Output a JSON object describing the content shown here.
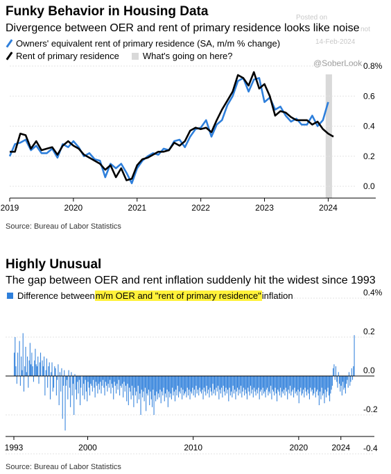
{
  "watermark": {
    "posted_on": "Posted on",
    "date": "14-Feb-2024",
    "handle": "@SoberLook",
    "faint": "not"
  },
  "colors": {
    "blue": "#2e7fdb",
    "black": "#000000",
    "highlight_bar": "#d9d9d9",
    "yellow": "#fff23a"
  },
  "chart_data": [
    {
      "type": "line",
      "title": "Funky Behavior in Housing Data",
      "subtitle": "Divergence between OER and rent of primary residence looks like noise",
      "legend": [
        "Owners' equivalent rent of primary residence (SA, m/m % change)",
        "Rent of primary residence",
        "What's going on here?"
      ],
      "source": "Source: Bureau of Labor Statistics",
      "x_ticks": [
        "2019",
        "2020",
        "2021",
        "2022",
        "2023",
        "2024"
      ],
      "y_ticks": [
        "0.0",
        "0.2",
        "0.4",
        "0.6",
        "0.8%"
      ],
      "ylim": [
        -0.05,
        0.8
      ],
      "xlim": [
        2019.0,
        2024.42
      ],
      "highlight_range": [
        2023.96,
        2024.06
      ],
      "series": [
        {
          "name": "Owners' equivalent rent of primary residence (SA, m/m % change)",
          "color": "#2e7fdb",
          "x": [
            2019.0,
            2019.083,
            2019.167,
            2019.25,
            2019.333,
            2019.417,
            2019.5,
            2019.583,
            2019.667,
            2019.75,
            2019.833,
            2019.917,
            2020.0,
            2020.083,
            2020.167,
            2020.25,
            2020.333,
            2020.417,
            2020.5,
            2020.583,
            2020.667,
            2020.75,
            2020.833,
            2020.917,
            2021.0,
            2021.083,
            2021.167,
            2021.25,
            2021.333,
            2021.417,
            2021.5,
            2021.583,
            2021.667,
            2021.75,
            2021.833,
            2021.917,
            2022.0,
            2022.083,
            2022.167,
            2022.25,
            2022.333,
            2022.417,
            2022.5,
            2022.583,
            2022.667,
            2022.75,
            2022.833,
            2022.917,
            2023.0,
            2023.083,
            2023.167,
            2023.25,
            2023.333,
            2023.417,
            2023.5,
            2023.583,
            2023.667,
            2023.75,
            2023.833,
            2023.917,
            2024.0
          ],
          "values": [
            0.2,
            0.28,
            0.29,
            0.31,
            0.24,
            0.27,
            0.22,
            0.22,
            0.25,
            0.19,
            0.28,
            0.26,
            0.3,
            0.26,
            0.2,
            0.22,
            0.18,
            0.17,
            0.06,
            0.15,
            0.12,
            0.15,
            0.09,
            0.02,
            0.12,
            0.17,
            0.2,
            0.22,
            0.21,
            0.25,
            0.24,
            0.3,
            0.31,
            0.26,
            0.33,
            0.38,
            0.39,
            0.44,
            0.33,
            0.41,
            0.44,
            0.54,
            0.6,
            0.7,
            0.72,
            0.63,
            0.71,
            0.72,
            0.56,
            0.59,
            0.51,
            0.53,
            0.47,
            0.43,
            0.45,
            0.41,
            0.41,
            0.47,
            0.4,
            0.44,
            0.56
          ]
        },
        {
          "name": "Rent of primary residence",
          "color": "#000000",
          "x": [
            2019.0,
            2019.083,
            2019.167,
            2019.25,
            2019.333,
            2019.417,
            2019.5,
            2019.583,
            2019.667,
            2019.75,
            2019.833,
            2019.917,
            2020.0,
            2020.083,
            2020.167,
            2020.25,
            2020.333,
            2020.417,
            2020.5,
            2020.583,
            2020.667,
            2020.75,
            2020.833,
            2020.917,
            2021.0,
            2021.083,
            2021.167,
            2021.25,
            2021.333,
            2021.417,
            2021.5,
            2021.583,
            2021.667,
            2021.75,
            2021.833,
            2021.917,
            2022.0,
            2022.083,
            2022.167,
            2022.25,
            2022.333,
            2022.417,
            2022.5,
            2022.583,
            2022.667,
            2022.75,
            2022.833,
            2022.917,
            2023.0,
            2023.083,
            2023.167,
            2023.25,
            2023.333,
            2023.417,
            2023.5,
            2023.583,
            2023.667,
            2023.75,
            2023.833,
            2023.917,
            2024.0,
            2024.083
          ],
          "values": [
            0.23,
            0.23,
            0.35,
            0.34,
            0.25,
            0.3,
            0.24,
            0.25,
            0.26,
            0.21,
            0.27,
            0.3,
            0.27,
            0.25,
            0.21,
            0.19,
            0.17,
            0.15,
            0.11,
            0.14,
            0.06,
            0.12,
            0.04,
            0.05,
            0.14,
            0.18,
            0.19,
            0.21,
            0.23,
            0.23,
            0.24,
            0.29,
            0.27,
            0.3,
            0.37,
            0.39,
            0.38,
            0.39,
            0.36,
            0.44,
            0.51,
            0.57,
            0.63,
            0.74,
            0.72,
            0.67,
            0.76,
            0.65,
            0.68,
            0.6,
            0.47,
            0.5,
            0.49,
            0.46,
            0.44,
            0.44,
            0.44,
            0.41,
            0.43,
            0.38,
            0.35,
            0.33
          ]
        }
      ]
    },
    {
      "type": "bar",
      "title": "Highly Unusual",
      "subtitle": "The gap between OER and rent inflation suddenly hit the widest since 1993",
      "legend": {
        "prefix": "Difference between ",
        "highlighted": "m/m OER and \"rent of primary residence\"",
        "suffix": " inflation"
      },
      "source": "Source: Bureau of Labor Statistics",
      "x_ticks": [
        "1993",
        "2000",
        "2010",
        "2020",
        "2024"
      ],
      "y_ticks": [
        "0.4%",
        "0.2",
        "0.0",
        "-0.2",
        "-0.4"
      ],
      "ylim": [
        -0.45,
        0.45
      ],
      "xlim": [
        1993.0,
        2024.15
      ],
      "color": "#2e7fdb",
      "x_start": 1993.0,
      "step": 0.0833,
      "values": [
        0.12,
        0.2,
        0.05,
        -0.04,
        0.12,
        0.0,
        0.18,
        -0.05,
        0.1,
        0.03,
        0.22,
        -0.08,
        0.05,
        0.15,
        0.02,
        0.1,
        -0.06,
        0.08,
        0.17,
        0.06,
        0.12,
        0.05,
        -0.03,
        0.08,
        0.14,
        0.06,
        0.05,
        0.1,
        -0.04,
        0.07,
        0.12,
        0.0,
        0.08,
        0.05,
        0.1,
        -0.1,
        0.03,
        0.09,
        -0.06,
        0.05,
        0.07,
        -0.12,
        0.02,
        0.07,
        -0.08,
        -0.06,
        0.05,
        0.04,
        -0.1,
        -0.02,
        0.06,
        -0.15,
        0.02,
        -0.08,
        0.04,
        -0.22,
        -0.05,
        0.03,
        -0.28,
        -0.05,
        -0.02,
        -0.12,
        0.03,
        -0.06,
        -0.16,
        0.02,
        -0.1,
        -0.04,
        -0.2,
        0.01,
        -0.07,
        -0.12,
        -0.03,
        -0.09,
        -0.02,
        -0.15,
        -0.06,
        0.0,
        -0.1,
        -0.04,
        -0.12,
        -0.02,
        -0.08,
        -0.13,
        -0.03,
        -0.06,
        -0.1,
        -0.04,
        -0.05,
        -0.08,
        -0.02,
        -0.06,
        -0.11,
        -0.03,
        -0.05,
        -0.09,
        -0.04,
        -0.07,
        -0.03,
        -0.09,
        -0.05,
        -0.02,
        -0.06,
        -0.1,
        -0.03,
        -0.05,
        -0.08,
        -0.04,
        -0.06,
        -0.02,
        -0.09,
        -0.04,
        -0.06,
        -0.12,
        -0.03,
        -0.05,
        -0.09,
        -0.04,
        -0.07,
        -0.02,
        -0.1,
        -0.05,
        -0.06,
        -0.04,
        -0.11,
        -0.03,
        -0.08,
        -0.05,
        -0.13,
        -0.04,
        -0.15,
        -0.06,
        -0.08,
        -0.12,
        -0.05,
        -0.1,
        -0.16,
        -0.06,
        -0.1,
        -0.08,
        -0.14,
        -0.05,
        -0.12,
        -0.09,
        -0.2,
        -0.07,
        -0.11,
        -0.08,
        -0.13,
        -0.06,
        -0.18,
        -0.09,
        -0.1,
        -0.07,
        -0.15,
        -0.08,
        -0.12,
        -0.16,
        -0.07,
        -0.2,
        -0.1,
        -0.13,
        -0.08,
        -0.12,
        -0.09,
        -0.11,
        -0.07,
        -0.14,
        -0.08,
        -0.1,
        -0.06,
        -0.13,
        -0.09,
        -0.11,
        -0.07,
        -0.16,
        -0.08,
        -0.11,
        -0.09,
        -0.12,
        -0.06,
        -0.1,
        -0.08,
        -0.13,
        -0.07,
        -0.1,
        -0.05,
        -0.11,
        -0.08,
        -0.09,
        -0.06,
        -0.12,
        -0.07,
        -0.1,
        -0.09,
        -0.08,
        -0.11,
        -0.06,
        -0.1,
        -0.07,
        -0.12,
        -0.08,
        -0.09,
        -0.06,
        -0.1,
        -0.07,
        -0.11,
        -0.05,
        -0.09,
        -0.07,
        -0.1,
        -0.06,
        -0.08,
        -0.09,
        -0.07,
        -0.12,
        -0.06,
        -0.08,
        -0.1,
        -0.05,
        -0.09,
        -0.07,
        -0.11,
        -0.06,
        -0.08,
        -0.1,
        -0.04,
        -0.09,
        -0.07,
        -0.1,
        -0.06,
        -0.08,
        -0.05,
        -0.12,
        -0.07,
        -0.09,
        -0.06,
        -0.11,
        -0.05,
        -0.08,
        -0.1,
        -0.06,
        -0.09,
        -0.07,
        -0.13,
        -0.06,
        -0.1,
        -0.08,
        -0.11,
        -0.05,
        -0.09,
        -0.07,
        -0.12,
        -0.08,
        -0.06,
        -0.1,
        -0.07,
        -0.09,
        -0.05,
        -0.11,
        -0.08,
        -0.06,
        -0.1,
        -0.07,
        -0.09,
        -0.12,
        -0.06,
        -0.08,
        -0.1,
        -0.05,
        -0.09,
        -0.07,
        -0.11,
        -0.06,
        -0.08,
        -0.1,
        -0.07,
        -0.09,
        -0.06,
        -0.12,
        -0.08,
        -0.07,
        -0.1,
        -0.06,
        -0.09,
        -0.08,
        -0.11,
        -0.07,
        -0.06,
        -0.1,
        -0.08,
        -0.09,
        -0.05,
        -0.12,
        -0.07,
        -0.08,
        -0.1,
        -0.06,
        -0.09,
        -0.13,
        -0.07,
        -0.08,
        -0.1,
        -0.06,
        -0.11,
        -0.08,
        -0.09,
        -0.07,
        -0.1,
        -0.06,
        -0.08,
        -0.12,
        -0.07,
        -0.09,
        -0.05,
        -0.1,
        -0.08,
        -0.07,
        -0.11,
        -0.06,
        -0.09,
        -0.08,
        -0.1,
        -0.07,
        -0.14,
        -0.08,
        -0.06,
        -0.1,
        -0.09,
        -0.07,
        -0.11,
        -0.06,
        -0.08,
        -0.1,
        -0.07,
        -0.09,
        -0.12,
        -0.06,
        -0.08,
        -0.07,
        -0.1,
        -0.09,
        -0.06,
        -0.11,
        -0.08,
        -0.07,
        -0.1,
        -0.15,
        -0.08,
        -0.12,
        -0.06,
        -0.1,
        -0.09,
        -0.14,
        -0.07,
        -0.11,
        -0.08,
        -0.06,
        -0.1,
        -0.13,
        -0.09,
        -0.07,
        -0.05,
        0.04,
        0.06,
        -0.02,
        0.05,
        -0.03,
        -0.06,
        0.02,
        -0.04,
        -0.08,
        -0.05,
        -0.1,
        -0.03,
        -0.07,
        -0.06,
        -0.09,
        -0.04,
        -0.02,
        -0.06,
        0.02,
        -0.05,
        -0.03,
        0.04,
        -0.02,
        0.05,
        0.21
      ]
    }
  ]
}
